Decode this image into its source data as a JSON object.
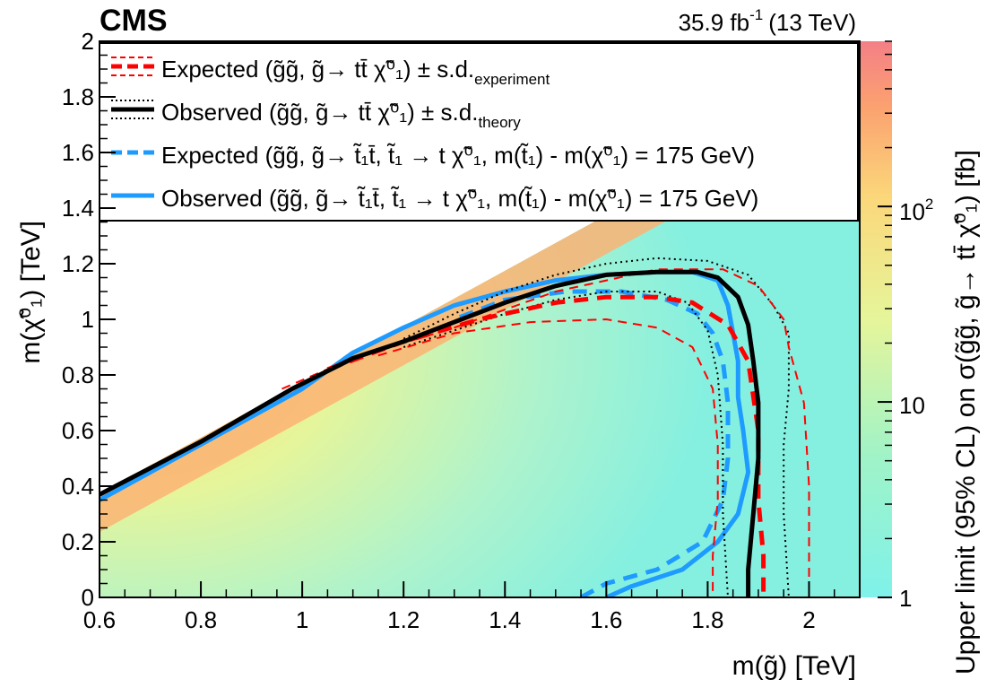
{
  "header": {
    "experiment": "CMS",
    "luminosity": "35.9 fb",
    "luminosity_exponent": "-1",
    "energy": "(13 TeV)"
  },
  "chart_data": {
    "type": "heatmap",
    "xlabel": "m(g̃) [TeV]",
    "ylabel": "m(χ̃⁰₁) [TeV]",
    "zlabel": "Upper limit (95% CL) on σ(g̃g̃, g̃→ tt̄ χ̃⁰₁) [fb]",
    "xlim": [
      0.6,
      2.1
    ],
    "ylim": [
      0,
      2.0
    ],
    "zlim": [
      1,
      700
    ],
    "z_scale": "log",
    "x_ticks": [
      "0.6",
      "0.8",
      "1",
      "1.2",
      "1.4",
      "1.6",
      "1.8",
      "2"
    ],
    "x_tick_values": [
      0.6,
      0.8,
      1.0,
      1.2,
      1.4,
      1.6,
      1.8,
      2.0
    ],
    "y_ticks": [
      "0",
      "0.2",
      "0.4",
      "0.6",
      "0.8",
      "1",
      "1.2",
      "1.4",
      "1.6",
      "1.8",
      "2"
    ],
    "y_tick_values": [
      0,
      0.2,
      0.4,
      0.6,
      0.8,
      1.0,
      1.2,
      1.4,
      1.6,
      1.8,
      2.0
    ],
    "z_ticks": [
      "1",
      "10",
      "10"
    ],
    "z_tick_exponent_label": "2",
    "z_tick_values": [
      1,
      10,
      100
    ],
    "colorscale": [
      "#7ff2ea",
      "#9ff3c8",
      "#e6f59a",
      "#fbd77a",
      "#fba270",
      "#f47f86"
    ],
    "legend": [
      {
        "label": "Expected (g̃g̃, g̃→ tt̄ χ̃⁰₁) ± s.d.",
        "subscript": "experiment",
        "color": "#ff0000",
        "style": "dashed-thick-band"
      },
      {
        "label": "Observed (g̃g̃, g̃→ tt̄ χ̃⁰₁) ± s.d.",
        "subscript": "theory",
        "color": "#000000",
        "style": "solid-thick-band"
      },
      {
        "label": "Expected (g̃g̃, g̃→ t̃₁t̄, t̃₁ → t χ̃⁰₁, m(t̃₁) - m(χ̃⁰₁) = 175 GeV)",
        "subscript": "",
        "color": "#1e9bff",
        "style": "dashed"
      },
      {
        "label": "Observed (g̃g̃, g̃→ t̃₁t̄, t̃₁ → t χ̃⁰₁, m(t̃₁) - m(χ̃⁰₁) = 175 GeV)",
        "subscript": "",
        "color": "#1e9bff",
        "style": "solid"
      }
    ],
    "series": [
      {
        "id": "obs-stop",
        "color": "#1e9bff",
        "style": "solid",
        "width": 5,
        "x": [
          0.6,
          0.8,
          1.0,
          1.1,
          1.2,
          1.3,
          1.4,
          1.5,
          1.6,
          1.7,
          1.77,
          1.82,
          1.84,
          1.85,
          1.86,
          1.86,
          1.87,
          1.88,
          1.86,
          1.82,
          1.75,
          1.65,
          1.6
        ],
        "y": [
          0.35,
          0.55,
          0.75,
          0.88,
          0.97,
          1.05,
          1.1,
          1.14,
          1.16,
          1.17,
          1.17,
          1.14,
          1.05,
          0.95,
          0.85,
          0.72,
          0.6,
          0.45,
          0.3,
          0.2,
          0.1,
          0.04,
          0.0
        ]
      },
      {
        "id": "exp-stop",
        "color": "#1e9bff",
        "style": "dashed",
        "width": 5,
        "x": [
          1.55,
          1.6,
          1.7,
          1.79,
          1.83,
          1.84,
          1.84,
          1.83,
          1.81,
          1.78,
          1.72,
          1.63,
          1.52,
          1.4,
          1.3
        ],
        "y": [
          0.0,
          0.05,
          0.1,
          0.2,
          0.35,
          0.5,
          0.7,
          0.85,
          0.95,
          1.02,
          1.07,
          1.1,
          1.1,
          1.07,
          1.0
        ]
      },
      {
        "id": "obs-stop-minus",
        "color": "#000000",
        "style": "dotted",
        "width": 2,
        "x": [
          1.2,
          1.3,
          1.4,
          1.5,
          1.6,
          1.7,
          1.76,
          1.8,
          1.82,
          1.83,
          1.83,
          1.84
        ],
        "y": [
          0.9,
          0.96,
          1.02,
          1.07,
          1.1,
          1.1,
          1.06,
          0.96,
          0.8,
          0.55,
          0.3,
          0.0
        ]
      },
      {
        "id": "obs-stop-plus",
        "color": "#000000",
        "style": "dotted",
        "width": 2,
        "x": [
          1.2,
          1.3,
          1.4,
          1.5,
          1.6,
          1.7,
          1.8,
          1.88,
          1.93,
          1.96,
          1.96,
          1.95,
          1.95,
          1.96
        ],
        "y": [
          0.93,
          1.02,
          1.1,
          1.16,
          1.2,
          1.22,
          1.21,
          1.16,
          1.05,
          0.95,
          0.75,
          0.55,
          0.3,
          0.0
        ]
      },
      {
        "id": "exp-minus",
        "color": "#ff0000",
        "style": "dashed",
        "width": 2,
        "x": [
          1.15,
          1.3,
          1.45,
          1.6,
          1.7,
          1.77,
          1.81,
          1.82,
          1.82,
          1.81,
          1.81
        ],
        "y": [
          0.87,
          0.95,
          0.99,
          1.0,
          0.97,
          0.9,
          0.75,
          0.55,
          0.35,
          0.15,
          0.0
        ]
      },
      {
        "id": "exp-plus",
        "color": "#ff0000",
        "style": "dashed",
        "width": 2,
        "x": [
          0.96,
          1.1,
          1.3,
          1.5,
          1.7,
          1.83,
          1.9,
          1.95,
          1.96,
          1.99,
          2.0,
          2.0
        ],
        "y": [
          0.75,
          0.86,
          0.97,
          1.1,
          1.18,
          1.18,
          1.12,
          1.0,
          0.9,
          0.7,
          0.4,
          0.0
        ]
      },
      {
        "id": "exp-central",
        "color": "#ff0000",
        "style": "dashed",
        "width": 5,
        "x": [
          1.05,
          1.2,
          1.35,
          1.5,
          1.6,
          1.7,
          1.77,
          1.84,
          1.88,
          1.9,
          1.9,
          1.91,
          1.91
        ],
        "y": [
          0.82,
          0.92,
          1.0,
          1.06,
          1.08,
          1.08,
          1.06,
          0.98,
          0.85,
          0.6,
          0.35,
          0.15,
          0.0
        ]
      },
      {
        "id": "obs-central",
        "color": "#000000",
        "style": "solid",
        "width": 5,
        "x": [
          0.6,
          0.8,
          0.98,
          1.1,
          1.2,
          1.3,
          1.4,
          1.5,
          1.6,
          1.7,
          1.78,
          1.82,
          1.86,
          1.88,
          1.89,
          1.9,
          1.9,
          1.89,
          1.88,
          1.88
        ],
        "y": [
          0.37,
          0.56,
          0.75,
          0.86,
          0.92,
          0.99,
          1.06,
          1.12,
          1.16,
          1.17,
          1.17,
          1.15,
          1.08,
          0.98,
          0.85,
          0.7,
          0.5,
          0.3,
          0.1,
          0.0
        ]
      }
    ]
  }
}
